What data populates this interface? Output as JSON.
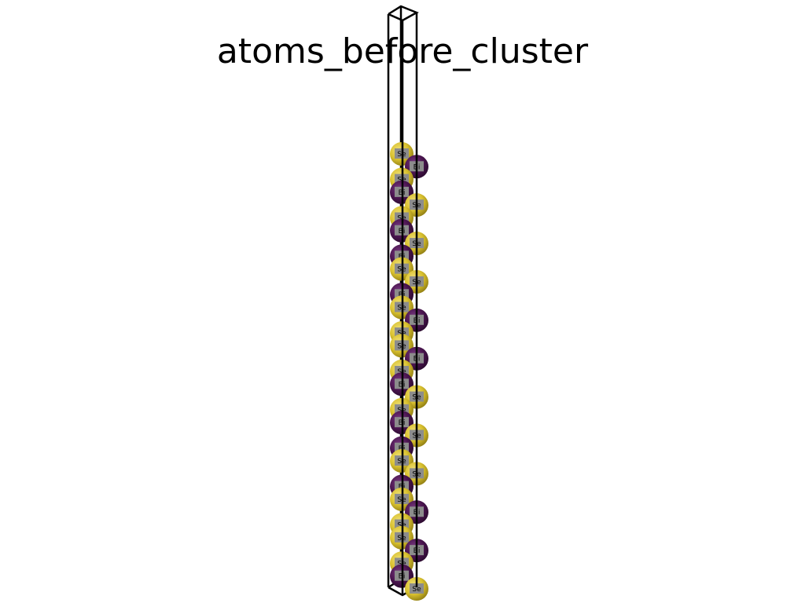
{
  "title": "atoms_before_cluster",
  "elements": {
    "Se": {
      "label": "Se",
      "color": "#d9c12f",
      "highlight": "#f2e27a",
      "shade": "#8f7d12"
    },
    "Bi": {
      "label": "Bi",
      "color": "#4b1550",
      "highlight": "#7a3a82",
      "shade": "#2a0a2e"
    }
  },
  "label_box_color": "#8c8c8c",
  "cell_edge_color": "#000000",
  "atoms": [
    {
      "element": "Se",
      "column": "left"
    },
    {
      "element": "Bi",
      "column": "right"
    },
    {
      "element": "Se",
      "column": "left"
    },
    {
      "element": "Bi",
      "column": "left"
    },
    {
      "element": "Se",
      "column": "right"
    },
    {
      "element": "Se",
      "column": "left"
    },
    {
      "element": "Bi",
      "column": "left"
    },
    {
      "element": "Se",
      "column": "right"
    },
    {
      "element": "Bi",
      "column": "left"
    },
    {
      "element": "Se",
      "column": "left"
    },
    {
      "element": "Se",
      "column": "right"
    },
    {
      "element": "Bi",
      "column": "left"
    },
    {
      "element": "Se",
      "column": "left"
    },
    {
      "element": "Bi",
      "column": "right"
    },
    {
      "element": "Se",
      "column": "left"
    },
    {
      "element": "Se",
      "column": "left"
    },
    {
      "element": "Bi",
      "column": "right"
    },
    {
      "element": "Se",
      "column": "left"
    },
    {
      "element": "Bi",
      "column": "left"
    },
    {
      "element": "Se",
      "column": "right"
    },
    {
      "element": "Se",
      "column": "left"
    },
    {
      "element": "Bi",
      "column": "left"
    },
    {
      "element": "Se",
      "column": "right"
    },
    {
      "element": "Bi",
      "column": "left"
    },
    {
      "element": "Se",
      "column": "left"
    },
    {
      "element": "Se",
      "column": "right"
    },
    {
      "element": "Bi",
      "column": "left"
    },
    {
      "element": "Se",
      "column": "left"
    },
    {
      "element": "Bi",
      "column": "right"
    },
    {
      "element": "Se",
      "column": "left"
    },
    {
      "element": "Se",
      "column": "left"
    },
    {
      "element": "Bi",
      "column": "right"
    },
    {
      "element": "Se",
      "column": "left"
    },
    {
      "element": "Bi",
      "column": "left"
    },
    {
      "element": "Se",
      "column": "right"
    }
  ]
}
